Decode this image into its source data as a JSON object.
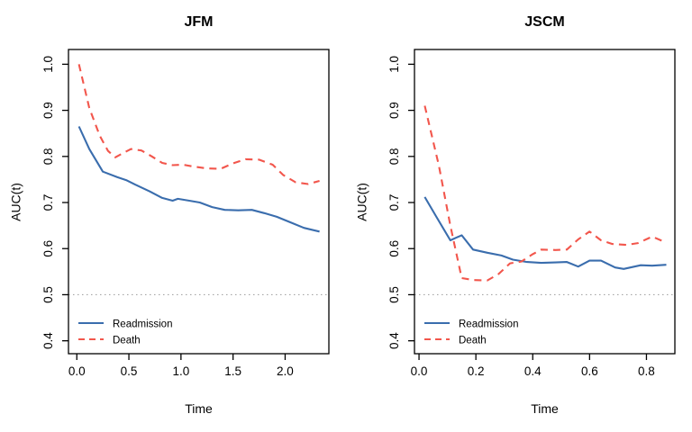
{
  "figure": {
    "background": "#ffffff",
    "text_color": "#000000"
  },
  "colors": {
    "readmission": "#3A6DAD",
    "death": "#F2564C",
    "reference": "#A6A6A6",
    "axis": "#000000"
  },
  "chart_data": [
    {
      "type": "line",
      "title": "JFM",
      "xlabel": "Time",
      "ylabel": "AUC(t)",
      "xlim": [
        -0.08,
        2.42
      ],
      "ylim": [
        0.372,
        1.032
      ],
      "xticks": [
        0.0,
        0.5,
        1.0,
        1.5,
        2.0
      ],
      "xtick_labels": [
        "0.0",
        "0.5",
        "1.0",
        "1.5",
        "2.0"
      ],
      "yticks": [
        0.4,
        0.5,
        0.6,
        0.7,
        0.8,
        0.9,
        1.0
      ],
      "ytick_labels": [
        "0.4",
        "0.5",
        "0.6",
        "0.7",
        "0.8",
        "0.9",
        "1.0"
      ],
      "reference_line_y": 0.5,
      "grid": false,
      "legend_position": "bottom-left",
      "series": [
        {
          "name": "Readmission",
          "color": "#3A6DAD",
          "dash": "solid",
          "x": [
            0.02,
            0.12,
            0.25,
            0.39,
            0.48,
            0.56,
            0.7,
            0.82,
            0.92,
            0.97,
            1.08,
            1.18,
            1.3,
            1.42,
            1.55,
            1.68,
            1.8,
            1.92,
            2.05,
            2.18,
            2.33
          ],
          "y": [
            0.865,
            0.816,
            0.767,
            0.755,
            0.748,
            0.739,
            0.724,
            0.71,
            0.704,
            0.708,
            0.704,
            0.7,
            0.69,
            0.684,
            0.683,
            0.684,
            0.677,
            0.669,
            0.657,
            0.645,
            0.637
          ]
        },
        {
          "name": "Death",
          "color": "#F2564C",
          "dash": "dashed",
          "x": [
            0.02,
            0.12,
            0.22,
            0.3,
            0.37,
            0.45,
            0.52,
            0.62,
            0.72,
            0.82,
            0.92,
            1.02,
            1.12,
            1.25,
            1.38,
            1.5,
            1.62,
            1.75,
            1.88,
            1.98,
            2.1,
            2.22,
            2.33
          ],
          "y": [
            1.0,
            0.905,
            0.845,
            0.812,
            0.798,
            0.808,
            0.816,
            0.813,
            0.8,
            0.786,
            0.781,
            0.782,
            0.778,
            0.774,
            0.773,
            0.785,
            0.794,
            0.793,
            0.782,
            0.76,
            0.744,
            0.74,
            0.747
          ]
        }
      ]
    },
    {
      "type": "line",
      "title": "JSCM",
      "xlabel": "Time",
      "ylabel": "AUC(t)",
      "xlim": [
        -0.016,
        0.9
      ],
      "ylim": [
        0.372,
        1.032
      ],
      "xticks": [
        0.0,
        0.2,
        0.4,
        0.6,
        0.8
      ],
      "xtick_labels": [
        "0.0",
        "0.2",
        "0.4",
        "0.6",
        "0.8"
      ],
      "yticks": [
        0.4,
        0.5,
        0.6,
        0.7,
        0.8,
        0.9,
        1.0
      ],
      "ytick_labels": [
        "0.4",
        "0.5",
        "0.6",
        "0.7",
        "0.8",
        "0.9",
        "1.0"
      ],
      "reference_line_y": 0.5,
      "grid": false,
      "legend_position": "bottom-left",
      "series": [
        {
          "name": "Readmission",
          "color": "#3A6DAD",
          "dash": "solid",
          "x": [
            0.02,
            0.06,
            0.11,
            0.15,
            0.19,
            0.24,
            0.29,
            0.33,
            0.38,
            0.43,
            0.48,
            0.52,
            0.56,
            0.6,
            0.64,
            0.69,
            0.72,
            0.78,
            0.82,
            0.87
          ],
          "y": [
            0.712,
            0.67,
            0.618,
            0.629,
            0.598,
            0.591,
            0.585,
            0.576,
            0.571,
            0.569,
            0.57,
            0.571,
            0.561,
            0.574,
            0.574,
            0.559,
            0.556,
            0.564,
            0.563,
            0.565
          ]
        },
        {
          "name": "Death",
          "color": "#F2564C",
          "dash": "dashed",
          "x": [
            0.02,
            0.07,
            0.11,
            0.15,
            0.19,
            0.24,
            0.28,
            0.32,
            0.36,
            0.4,
            0.43,
            0.48,
            0.52,
            0.56,
            0.6,
            0.64,
            0.68,
            0.73,
            0.77,
            0.82,
            0.87
          ],
          "y": [
            0.91,
            0.78,
            0.65,
            0.536,
            0.532,
            0.531,
            0.545,
            0.568,
            0.572,
            0.588,
            0.598,
            0.597,
            0.598,
            0.62,
            0.637,
            0.618,
            0.61,
            0.608,
            0.612,
            0.626,
            0.613
          ]
        }
      ]
    }
  ]
}
